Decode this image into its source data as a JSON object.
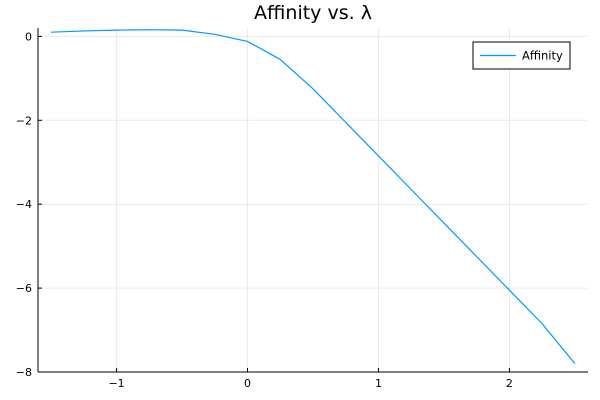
{
  "chart_data": {
    "type": "line",
    "title": "Affinity vs. λ",
    "xlabel": "",
    "ylabel": "",
    "xlim": [
      -1.6,
      2.6
    ],
    "ylim": [
      -8.0,
      0.2
    ],
    "xticks": [
      -1,
      0,
      1,
      2
    ],
    "xtick_labels": [
      "−1",
      "0",
      "1",
      "2"
    ],
    "yticks": [
      0,
      -2,
      -4,
      -6,
      -8
    ],
    "ytick_labels": [
      "0",
      "−2",
      "−4",
      "−6",
      "−8"
    ],
    "grid": true,
    "legend_position": "top-right",
    "series": [
      {
        "name": "Affinity",
        "color": "#009AFA",
        "x": [
          -1.5,
          -1.25,
          -1.0,
          -0.75,
          -0.5,
          -0.25,
          0.0,
          0.25,
          0.5,
          0.75,
          1.0,
          1.25,
          1.5,
          1.75,
          2.0,
          2.25,
          2.5
        ],
        "y": [
          0.1,
          0.13,
          0.15,
          0.16,
          0.15,
          0.05,
          -0.12,
          -0.55,
          -1.25,
          -2.05,
          -2.85,
          -3.65,
          -4.45,
          -5.25,
          -6.05,
          -6.85,
          -7.8
        ]
      }
    ]
  }
}
